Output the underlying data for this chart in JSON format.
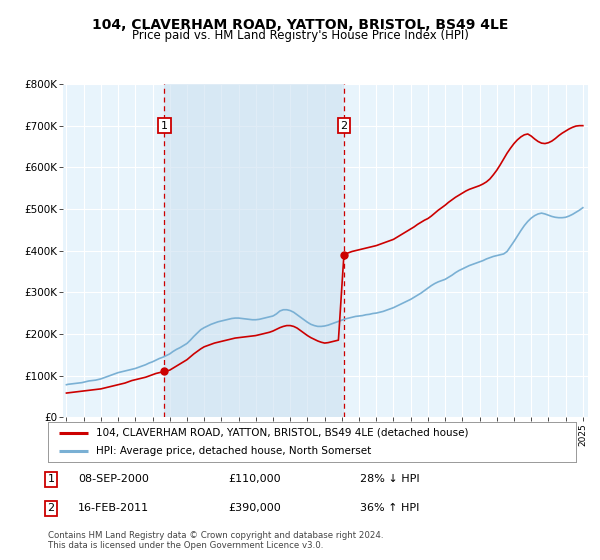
{
  "title": "104, CLAVERHAM ROAD, YATTON, BRISTOL, BS49 4LE",
  "subtitle": "Price paid vs. HM Land Registry's House Price Index (HPI)",
  "legend_line1": "104, CLAVERHAM ROAD, YATTON, BRISTOL, BS49 4LE (detached house)",
  "legend_line2": "HPI: Average price, detached house, North Somerset",
  "footnote": "Contains HM Land Registry data © Crown copyright and database right 2024.\nThis data is licensed under the Open Government Licence v3.0.",
  "sale1_date": "08-SEP-2000",
  "sale1_price": "£110,000",
  "sale1_hpi": "28% ↓ HPI",
  "sale2_date": "16-FEB-2011",
  "sale2_price": "£390,000",
  "sale2_hpi": "36% ↑ HPI",
  "sale1_year": 2000.69,
  "sale1_value": 110000,
  "sale2_year": 2011.12,
  "sale2_value": 390000,
  "red_line_color": "#cc0000",
  "blue_line_color": "#7ab0d4",
  "shade_color": "#cce0f0",
  "bg_color": "#e8f4fc",
  "grid_color": "#ffffff",
  "ylim": [
    0,
    800000
  ],
  "xlim_start": 1994.8,
  "xlim_end": 2025.3,
  "hpi_x": [
    1995.0,
    1995.1,
    1995.2,
    1995.3,
    1995.4,
    1995.5,
    1995.6,
    1995.7,
    1995.8,
    1995.9,
    1996.0,
    1996.1,
    1996.2,
    1996.3,
    1996.4,
    1996.5,
    1996.6,
    1996.7,
    1996.8,
    1996.9,
    1997.0,
    1997.2,
    1997.4,
    1997.6,
    1997.8,
    1998.0,
    1998.2,
    1998.4,
    1998.6,
    1998.8,
    1999.0,
    1999.2,
    1999.4,
    1999.6,
    1999.8,
    2000.0,
    2000.2,
    2000.4,
    2000.6,
    2000.8,
    2001.0,
    2001.2,
    2001.4,
    2001.6,
    2001.8,
    2002.0,
    2002.2,
    2002.4,
    2002.6,
    2002.8,
    2003.0,
    2003.2,
    2003.4,
    2003.6,
    2003.8,
    2004.0,
    2004.2,
    2004.4,
    2004.6,
    2004.8,
    2005.0,
    2005.2,
    2005.4,
    2005.6,
    2005.8,
    2006.0,
    2006.2,
    2006.4,
    2006.6,
    2006.8,
    2007.0,
    2007.2,
    2007.4,
    2007.6,
    2007.8,
    2008.0,
    2008.2,
    2008.4,
    2008.6,
    2008.8,
    2009.0,
    2009.2,
    2009.4,
    2009.6,
    2009.8,
    2010.0,
    2010.2,
    2010.4,
    2010.6,
    2010.8,
    2011.0,
    2011.2,
    2011.4,
    2011.6,
    2011.8,
    2012.0,
    2012.2,
    2012.4,
    2012.6,
    2012.8,
    2013.0,
    2013.2,
    2013.4,
    2013.6,
    2013.8,
    2014.0,
    2014.2,
    2014.4,
    2014.6,
    2014.8,
    2015.0,
    2015.2,
    2015.4,
    2015.6,
    2015.8,
    2016.0,
    2016.2,
    2016.4,
    2016.6,
    2016.8,
    2017.0,
    2017.2,
    2017.4,
    2017.6,
    2017.8,
    2018.0,
    2018.2,
    2018.4,
    2018.6,
    2018.8,
    2019.0,
    2019.2,
    2019.4,
    2019.6,
    2019.8,
    2020.0,
    2020.2,
    2020.4,
    2020.6,
    2020.8,
    2021.0,
    2021.2,
    2021.4,
    2021.6,
    2021.8,
    2022.0,
    2022.2,
    2022.4,
    2022.6,
    2022.8,
    2023.0,
    2023.2,
    2023.4,
    2023.6,
    2023.8,
    2024.0,
    2024.2,
    2024.4,
    2024.6,
    2024.8,
    2025.0
  ],
  "hpi_y": [
    78000,
    79000,
    79500,
    80000,
    80500,
    81000,
    81500,
    82000,
    82500,
    83000,
    84000,
    85000,
    86000,
    87000,
    87500,
    88000,
    88500,
    89000,
    90000,
    91000,
    92000,
    95000,
    98000,
    101000,
    104000,
    107000,
    109000,
    111000,
    113000,
    115000,
    117000,
    120000,
    123000,
    126000,
    130000,
    133000,
    137000,
    141000,
    144000,
    148000,
    152000,
    158000,
    163000,
    167000,
    172000,
    177000,
    185000,
    194000,
    202000,
    210000,
    215000,
    219000,
    223000,
    226000,
    229000,
    231000,
    233000,
    235000,
    237000,
    238000,
    238000,
    237000,
    236000,
    235000,
    234000,
    234000,
    235000,
    237000,
    239000,
    241000,
    243000,
    248000,
    255000,
    258000,
    258000,
    256000,
    252000,
    246000,
    240000,
    234000,
    228000,
    223000,
    220000,
    218000,
    218000,
    219000,
    221000,
    224000,
    227000,
    230000,
    233000,
    236000,
    238000,
    240000,
    242000,
    243000,
    244000,
    246000,
    247000,
    249000,
    250000,
    252000,
    254000,
    257000,
    260000,
    263000,
    267000,
    271000,
    275000,
    279000,
    283000,
    288000,
    293000,
    298000,
    304000,
    310000,
    316000,
    321000,
    325000,
    328000,
    331000,
    336000,
    341000,
    347000,
    352000,
    356000,
    360000,
    364000,
    367000,
    370000,
    373000,
    376000,
    380000,
    383000,
    386000,
    388000,
    390000,
    392000,
    398000,
    410000,
    422000,
    435000,
    448000,
    460000,
    470000,
    478000,
    484000,
    488000,
    490000,
    488000,
    485000,
    482000,
    480000,
    479000,
    479000,
    480000,
    483000,
    487000,
    492000,
    497000,
    503000
  ],
  "red_x": [
    1995.0,
    1995.2,
    1995.4,
    1995.6,
    1995.8,
    1996.0,
    1996.2,
    1996.4,
    1996.6,
    1996.8,
    1997.0,
    1997.2,
    1997.4,
    1997.6,
    1997.8,
    1998.0,
    1998.2,
    1998.4,
    1998.6,
    1998.8,
    1999.0,
    1999.2,
    1999.4,
    1999.6,
    1999.8,
    2000.0,
    2000.2,
    2000.4,
    2000.69,
    2001.0,
    2001.2,
    2001.4,
    2001.6,
    2001.8,
    2002.0,
    2002.2,
    2002.4,
    2002.6,
    2002.8,
    2003.0,
    2003.2,
    2003.4,
    2003.6,
    2003.8,
    2004.0,
    2004.2,
    2004.4,
    2004.6,
    2004.8,
    2005.0,
    2005.2,
    2005.4,
    2005.6,
    2005.8,
    2006.0,
    2006.2,
    2006.4,
    2006.6,
    2006.8,
    2007.0,
    2007.2,
    2007.4,
    2007.6,
    2007.8,
    2008.0,
    2008.2,
    2008.4,
    2008.6,
    2008.8,
    2009.0,
    2009.2,
    2009.4,
    2009.6,
    2009.8,
    2010.0,
    2010.2,
    2010.4,
    2010.6,
    2010.8,
    2011.12,
    2011.2,
    2011.4,
    2011.6,
    2011.8,
    2012.0,
    2012.2,
    2012.4,
    2012.6,
    2012.8,
    2013.0,
    2013.2,
    2013.4,
    2013.6,
    2013.8,
    2014.0,
    2014.2,
    2014.4,
    2014.6,
    2014.8,
    2015.0,
    2015.2,
    2015.4,
    2015.6,
    2015.8,
    2016.0,
    2016.2,
    2016.4,
    2016.6,
    2016.8,
    2017.0,
    2017.2,
    2017.4,
    2017.6,
    2017.8,
    2018.0,
    2018.2,
    2018.4,
    2018.6,
    2018.8,
    2019.0,
    2019.2,
    2019.4,
    2019.6,
    2019.8,
    2020.0,
    2020.2,
    2020.4,
    2020.6,
    2020.8,
    2021.0,
    2021.2,
    2021.4,
    2021.6,
    2021.8,
    2022.0,
    2022.2,
    2022.4,
    2022.6,
    2022.8,
    2023.0,
    2023.2,
    2023.4,
    2023.6,
    2023.8,
    2024.0,
    2024.2,
    2024.4,
    2024.6,
    2024.8,
    2025.0
  ],
  "red_y": [
    58000,
    59000,
    60000,
    61000,
    62000,
    63000,
    64000,
    65000,
    66000,
    67000,
    68000,
    70000,
    72000,
    74000,
    76000,
    78000,
    80000,
    82000,
    85000,
    88000,
    90000,
    92000,
    94000,
    96000,
    99000,
    102000,
    105000,
    107000,
    110000,
    113000,
    118000,
    123000,
    128000,
    133000,
    138000,
    145000,
    152000,
    158000,
    164000,
    169000,
    172000,
    175000,
    178000,
    180000,
    182000,
    184000,
    186000,
    188000,
    190000,
    191000,
    192000,
    193000,
    194000,
    195000,
    196000,
    198000,
    200000,
    202000,
    204000,
    207000,
    211000,
    215000,
    218000,
    220000,
    220000,
    218000,
    214000,
    208000,
    202000,
    196000,
    191000,
    187000,
    183000,
    180000,
    178000,
    179000,
    181000,
    183000,
    185000,
    390000,
    392000,
    395000,
    398000,
    400000,
    402000,
    404000,
    406000,
    408000,
    410000,
    412000,
    415000,
    418000,
    421000,
    424000,
    427000,
    432000,
    437000,
    442000,
    447000,
    452000,
    457000,
    463000,
    468000,
    473000,
    477000,
    483000,
    490000,
    497000,
    503000,
    509000,
    516000,
    522000,
    528000,
    533000,
    538000,
    543000,
    547000,
    550000,
    553000,
    556000,
    560000,
    565000,
    572000,
    582000,
    593000,
    606000,
    620000,
    634000,
    646000,
    657000,
    666000,
    673000,
    678000,
    680000,
    675000,
    668000,
    662000,
    658000,
    657000,
    659000,
    663000,
    669000,
    676000,
    682000,
    687000,
    692000,
    696000,
    699000,
    700000,
    700000
  ]
}
